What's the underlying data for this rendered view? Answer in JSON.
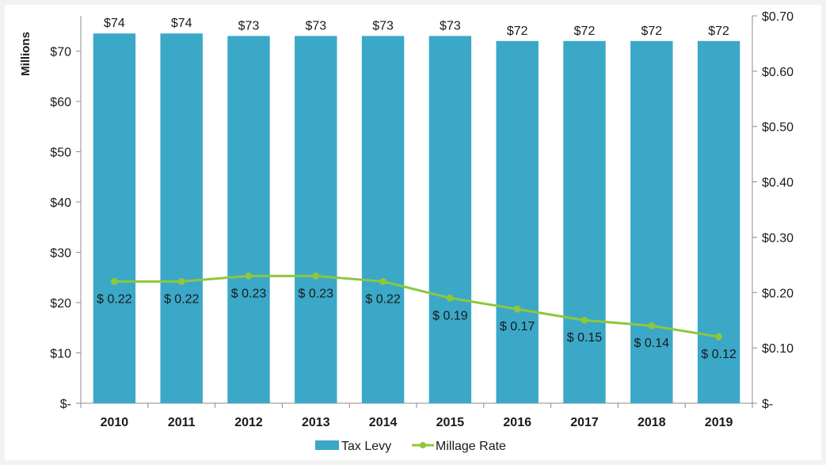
{
  "chart_data": {
    "type": "bar",
    "categories": [
      "2010",
      "2011",
      "2012",
      "2013",
      "2014",
      "2015",
      "2016",
      "2017",
      "2018",
      "2019"
    ],
    "series": [
      {
        "name": "Tax Levy",
        "type": "bar",
        "axis": "left",
        "values": [
          73.5,
          73.5,
          73.0,
          73.0,
          73.0,
          73.0,
          72.0,
          72.0,
          72.0,
          72.0
        ],
        "labels": [
          "$74",
          "$74",
          "$73",
          "$73",
          "$73",
          "$73",
          "$72",
          "$72",
          "$72",
          "$72"
        ],
        "color": "#3ba8c8"
      },
      {
        "name": "Millage Rate",
        "type": "line",
        "axis": "right",
        "values": [
          0.22,
          0.22,
          0.23,
          0.23,
          0.22,
          0.19,
          0.17,
          0.15,
          0.14,
          0.12
        ],
        "labels": [
          "$ 0.22",
          "$ 0.22",
          "$ 0.23",
          "$ 0.23",
          "$ 0.22",
          "$ 0.19",
          "$ 0.17",
          "$ 0.15",
          "$ 0.14",
          "$ 0.12"
        ],
        "color": "#8dc63f"
      }
    ],
    "ylabel": "Millions",
    "ylim": [
      0,
      77
    ],
    "y_ticks": [
      0,
      10,
      20,
      30,
      40,
      50,
      60,
      70
    ],
    "y_tick_labels": [
      "$-",
      "$10",
      "$20",
      "$30",
      "$40",
      "$50",
      "$60",
      "$70"
    ],
    "y2lim": [
      0,
      0.7
    ],
    "y2_ticks": [
      0,
      0.1,
      0.2,
      0.3,
      0.4,
      0.5,
      0.6,
      0.7
    ],
    "y2_tick_labels": [
      "$-",
      "$0.10",
      "$0.20",
      "$0.30",
      "$0.40",
      "$0.50",
      "$0.60",
      "$0.70"
    ],
    "grid": false,
    "legend_position": "bottom"
  }
}
